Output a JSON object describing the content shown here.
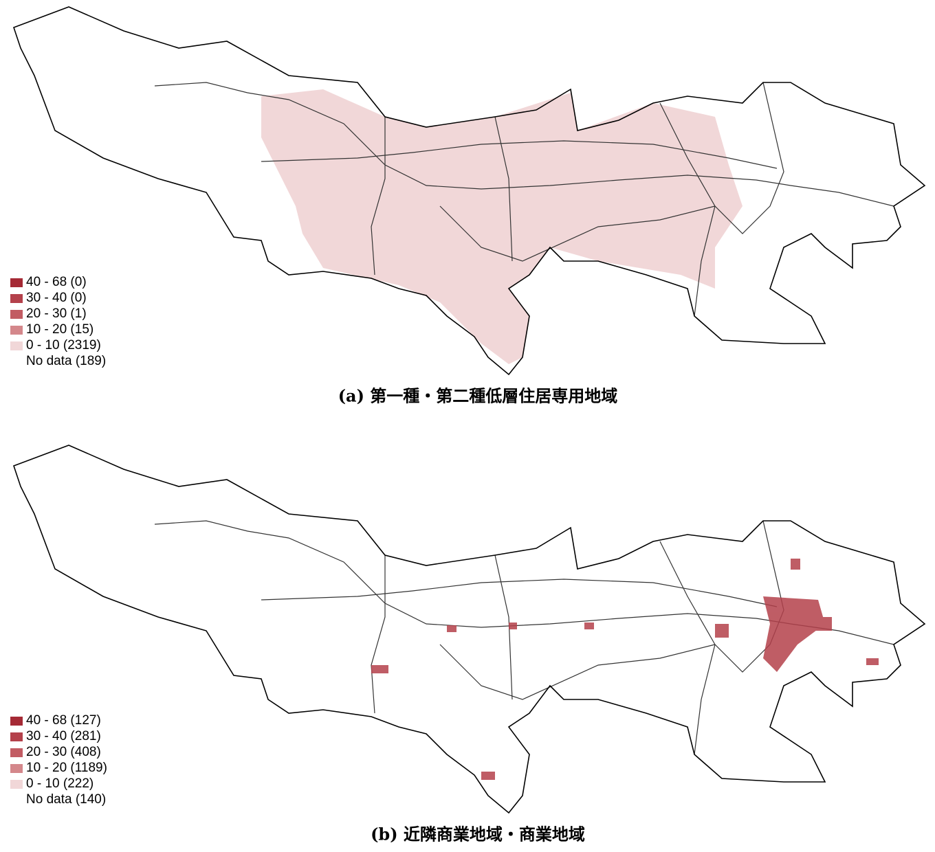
{
  "legend_colors": [
    "#a52a35",
    "#b4414b",
    "#c25c63",
    "#d4878b",
    "#f1d7d8"
  ],
  "panels": [
    {
      "caption": "(a) 第一種・第二種低層住居専用地域",
      "legend": [
        "40 - 68 (0)",
        "30 - 40 (0)",
        "20 - 30 (1)",
        "10 - 20 (15)",
        "0 - 10 (2319)",
        "No data (189)"
      ]
    },
    {
      "caption": "(b) 近隣商業地域・商業地域",
      "legend": [
        "40 - 68 (127)",
        "30 - 40 (281)",
        "20 - 30 (408)",
        "10 - 20 (1189)",
        "0 - 10 (222)",
        "No data (140)"
      ]
    }
  ]
}
